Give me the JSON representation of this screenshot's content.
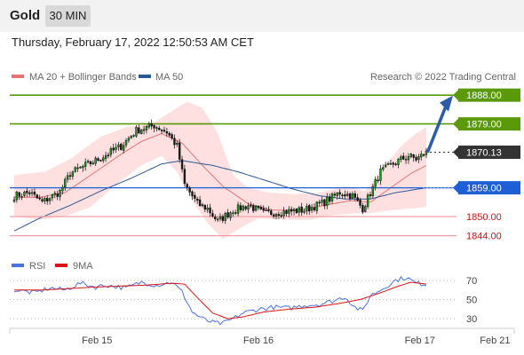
{
  "header": {
    "title": "Gold",
    "timeframe": "30 MIN",
    "timestamp": "Thursday, February 17, 2022 12:50:53 AM CET"
  },
  "legend": {
    "ma20": "MA 20 + Bollinger Bands",
    "ma50": "MA 50",
    "credit": "Research © 2022 Trading Central",
    "rsi": "RSI",
    "ma9": "9MA"
  },
  "colors": {
    "green": "#5a9a08",
    "blue": "#1f5fd6",
    "red": "#cc1111",
    "dark": "#333333",
    "arrow": "#2a5ca8",
    "ma20": "#e57373",
    "ma50": "#2b5797",
    "band": "#ffd6d6",
    "rsi": "#4a72e0",
    "ma9": "#dd1111"
  },
  "chart_data": [
    {
      "type": "candlestick",
      "ylim": [
        1840,
        1890
      ],
      "x_ticks": [
        {
          "label": "Feb 15",
          "pos": 0.173
        },
        {
          "label": "Feb 16",
          "pos": 0.493
        },
        {
          "label": "Feb 17",
          "pos": 0.813
        },
        {
          "label": "Feb 21",
          "pos": 0.962
        }
      ],
      "levels": [
        {
          "value": 1888.0,
          "label": "1888.00",
          "style": "green-solid",
          "box": true
        },
        {
          "value": 1879.0,
          "label": "1879.00",
          "style": "green-solid",
          "box": true
        },
        {
          "value": 1870.13,
          "label": "1870.13",
          "style": "dark-dotted",
          "box": true
        },
        {
          "value": 1859.0,
          "label": "1859.00",
          "style": "blue-solid",
          "box": true
        },
        {
          "value": 1850.0,
          "label": "1850.00",
          "style": "red-solid",
          "box": false
        },
        {
          "value": 1844.0,
          "label": "1844.00",
          "style": "red-solid",
          "box": false
        }
      ],
      "price_keyframes": [
        [
          0,
          1856.5
        ],
        [
          6,
          1857.5
        ],
        [
          11,
          1854.5
        ],
        [
          18,
          1857.8
        ],
        [
          22,
          1863.5
        ],
        [
          28,
          1866
        ],
        [
          32,
          1867.5
        ],
        [
          42,
          1872
        ],
        [
          48,
          1877
        ],
        [
          55,
          1878.5
        ],
        [
          60,
          1876.5
        ],
        [
          64,
          1872
        ],
        [
          67,
          1860
        ],
        [
          72,
          1854
        ],
        [
          76,
          1852.5
        ],
        [
          80,
          1848.5
        ],
        [
          86,
          1852
        ],
        [
          92,
          1853.5
        ],
        [
          98,
          1851
        ],
        [
          106,
          1851.5
        ],
        [
          114,
          1852
        ],
        [
          122,
          1854.5
        ],
        [
          128,
          1857.5
        ],
        [
          133,
          1856.5
        ],
        [
          137,
          1852.5
        ],
        [
          141,
          1859
        ],
        [
          144,
          1864
        ],
        [
          150,
          1867
        ],
        [
          155,
          1869
        ],
        [
          158,
          1868
        ],
        [
          162,
          1870
        ]
      ],
      "ma20_keyframes": [
        [
          0,
          1856
        ],
        [
          10,
          1856
        ],
        [
          20,
          1857.5
        ],
        [
          32,
          1864
        ],
        [
          42,
          1869.5
        ],
        [
          50,
          1873.5
        ],
        [
          58,
          1876
        ],
        [
          66,
          1873
        ],
        [
          74,
          1866
        ],
        [
          82,
          1859.5
        ],
        [
          92,
          1854
        ],
        [
          102,
          1852
        ],
        [
          112,
          1852
        ],
        [
          122,
          1853.5
        ],
        [
          132,
          1855
        ],
        [
          140,
          1854.5
        ],
        [
          148,
          1859
        ],
        [
          156,
          1863.5
        ],
        [
          162,
          1866
        ]
      ],
      "ma50_keyframes": [
        [
          0,
          1845.5
        ],
        [
          10,
          1849.5
        ],
        [
          22,
          1853.5
        ],
        [
          34,
          1858
        ],
        [
          46,
          1862
        ],
        [
          58,
          1866.5
        ],
        [
          66,
          1867.5
        ],
        [
          78,
          1866
        ],
        [
          88,
          1864
        ],
        [
          100,
          1861
        ],
        [
          110,
          1858.5
        ],
        [
          120,
          1856.5
        ],
        [
          130,
          1855.5
        ],
        [
          140,
          1855.5
        ],
        [
          150,
          1857.5
        ],
        [
          162,
          1859
        ]
      ],
      "bb_upper_keyframes": [
        [
          0,
          1863
        ],
        [
          12,
          1864
        ],
        [
          22,
          1868
        ],
        [
          34,
          1875
        ],
        [
          44,
          1878
        ],
        [
          54,
          1879
        ],
        [
          62,
          1883
        ],
        [
          68,
          1886
        ],
        [
          74,
          1884
        ],
        [
          80,
          1876
        ],
        [
          86,
          1863
        ],
        [
          92,
          1859
        ],
        [
          100,
          1857.5
        ],
        [
          110,
          1857
        ],
        [
          120,
          1857.5
        ],
        [
          130,
          1859.5
        ],
        [
          138,
          1858
        ],
        [
          146,
          1866
        ],
        [
          152,
          1872
        ],
        [
          158,
          1876
        ],
        [
          162,
          1878
        ]
      ],
      "bb_lower_keyframes": [
        [
          0,
          1850
        ],
        [
          10,
          1849
        ],
        [
          20,
          1850
        ],
        [
          30,
          1853
        ],
        [
          40,
          1860
        ],
        [
          50,
          1866
        ],
        [
          58,
          1869
        ],
        [
          64,
          1864
        ],
        [
          70,
          1855
        ],
        [
          76,
          1848
        ],
        [
          82,
          1843
        ],
        [
          88,
          1846
        ],
        [
          96,
          1849.5
        ],
        [
          106,
          1849
        ],
        [
          116,
          1849
        ],
        [
          126,
          1850.5
        ],
        [
          134,
          1851
        ],
        [
          140,
          1851
        ],
        [
          148,
          1852
        ],
        [
          156,
          1852.5
        ],
        [
          162,
          1853
        ]
      ]
    },
    {
      "type": "line",
      "name": "RSI",
      "ylim": [
        20,
        80
      ],
      "y_ticks": [
        70,
        50,
        30
      ],
      "rsi_keyframes": [
        [
          0,
          60
        ],
        [
          8,
          57
        ],
        [
          14,
          62
        ],
        [
          20,
          60
        ],
        [
          26,
          67
        ],
        [
          32,
          63
        ],
        [
          36,
          65
        ],
        [
          44,
          62
        ],
        [
          50,
          68
        ],
        [
          56,
          65
        ],
        [
          62,
          68
        ],
        [
          66,
          58
        ],
        [
          70,
          37
        ],
        [
          74,
          30
        ],
        [
          78,
          26
        ],
        [
          82,
          25
        ],
        [
          86,
          30
        ],
        [
          90,
          36
        ],
        [
          96,
          40
        ],
        [
          102,
          42
        ],
        [
          108,
          41
        ],
        [
          114,
          44
        ],
        [
          120,
          45
        ],
        [
          126,
          49
        ],
        [
          130,
          53
        ],
        [
          134,
          42
        ],
        [
          137,
          38
        ],
        [
          140,
          54
        ],
        [
          144,
          60
        ],
        [
          150,
          70
        ],
        [
          154,
          73
        ],
        [
          158,
          67
        ],
        [
          162,
          66
        ]
      ],
      "ma9_keyframes": [
        [
          0,
          60
        ],
        [
          12,
          60
        ],
        [
          22,
          61.5
        ],
        [
          32,
          63
        ],
        [
          42,
          64
        ],
        [
          52,
          65
        ],
        [
          62,
          67
        ],
        [
          67,
          66
        ],
        [
          72,
          52
        ],
        [
          78,
          36
        ],
        [
          84,
          30
        ],
        [
          90,
          32
        ],
        [
          98,
          37
        ],
        [
          108,
          40
        ],
        [
          118,
          42
        ],
        [
          128,
          46
        ],
        [
          136,
          50
        ],
        [
          144,
          57
        ],
        [
          150,
          63
        ],
        [
          156,
          68
        ],
        [
          162,
          66
        ]
      ]
    }
  ]
}
